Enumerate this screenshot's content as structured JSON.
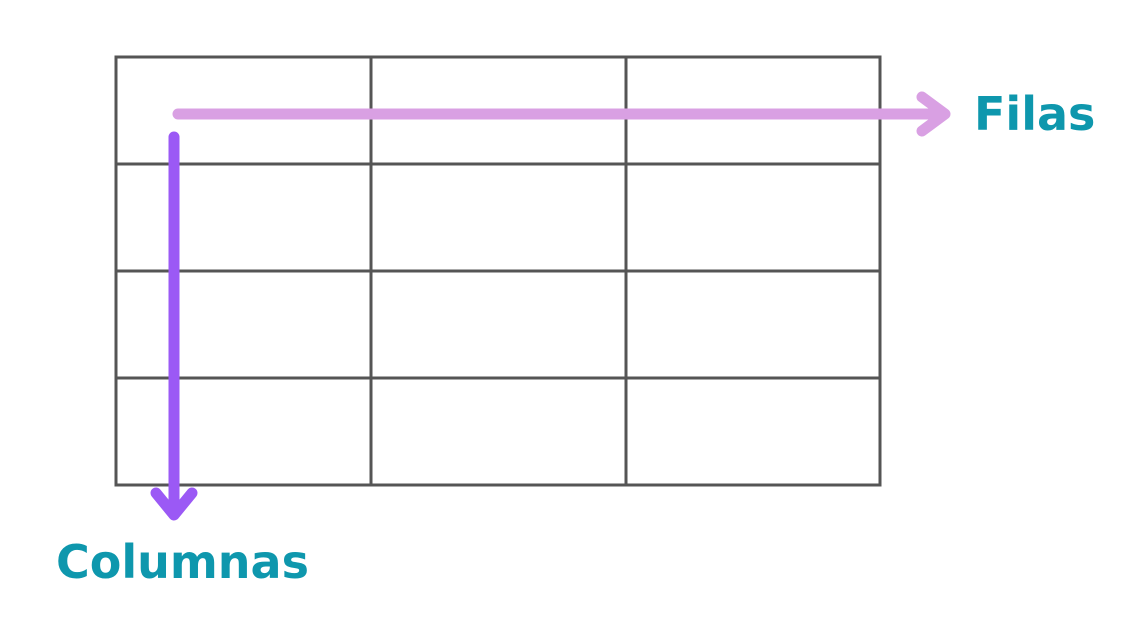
{
  "labels": {
    "rows": "Filas",
    "columns": "Columnas"
  },
  "grid": {
    "row_count": 4,
    "column_count": 3
  },
  "colors": {
    "grid_line": "#555555",
    "rows_arrow": "#d9a0e3",
    "columns_arrow": "#9b59f5",
    "label_text": "#0e97ad",
    "background": "#ffffff"
  }
}
